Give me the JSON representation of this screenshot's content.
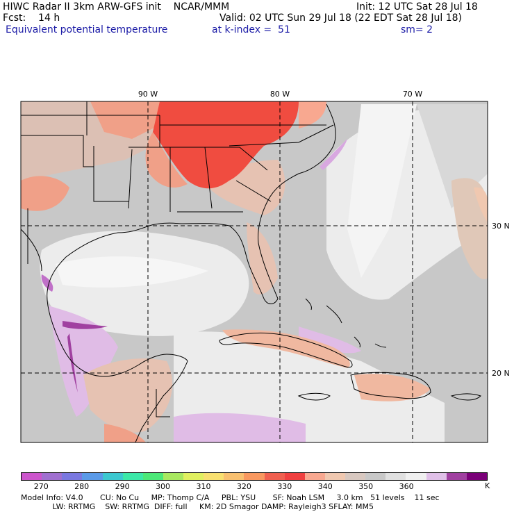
{
  "header": {
    "left_line1": "HIWC Radar II 3km ARW-GFS init    NCAR/MMM",
    "right_line1": "Init: 12 UTC Sat 28 Jul 18",
    "left_line2": "Fcst:    14 h",
    "right_line2": "Valid: 02 UTC Sun 29 Jul 18 (22 EDT Sat 28 Jul 18)",
    "field_name": "Equivalent potential temperature",
    "level": "at k-index =  51",
    "smoothing": "sm= 2"
  },
  "grid_labels": {
    "lon": [
      "90 W",
      "80 W",
      "70 W"
    ],
    "lat": [
      "30 N",
      "20 N"
    ]
  },
  "colorbar": {
    "unit": "K",
    "tick_labels": [
      "270",
      "280",
      "290",
      "300",
      "310",
      "320",
      "330",
      "340",
      "350",
      "360"
    ],
    "colors": [
      "#cc55cc",
      "#a070d0",
      "#7a78e0",
      "#5a9ae8",
      "#3cc8d0",
      "#3ce8a8",
      "#4ce878",
      "#a8e860",
      "#e0f060",
      "#f8e070",
      "#f8c070",
      "#f89860",
      "#f06050",
      "#f04040",
      "#f8a890",
      "#f0c8b0",
      "#d8c8c0",
      "#c8c8c8",
      "#e0e0e0",
      "#f0f0f0",
      "#e0c0e8",
      "#a040a0",
      "#7a0078"
    ]
  },
  "footer": {
    "line1": "Model Info: V4.0       CU: No Cu     MP: Thomp C/A     PBL: YSU       SF: Noah LSM     3.0 km   51 levels    11 sec",
    "line2": "             LW: RRTMG    SW: RRTMG  DIFF: full     KM: 2D Smagor DAMP: Rayleigh3 SFLAY: MM5"
  },
  "colors": {
    "gray_base": "#c8c8c8",
    "light_gray": "#ececec",
    "red_high": "#f04c40",
    "salmon": "#f0a088",
    "tan": "#e6c2b2",
    "lavender": "#e0bce6",
    "purple": "#a040a0",
    "brown_edge": "#d0b8b0"
  }
}
